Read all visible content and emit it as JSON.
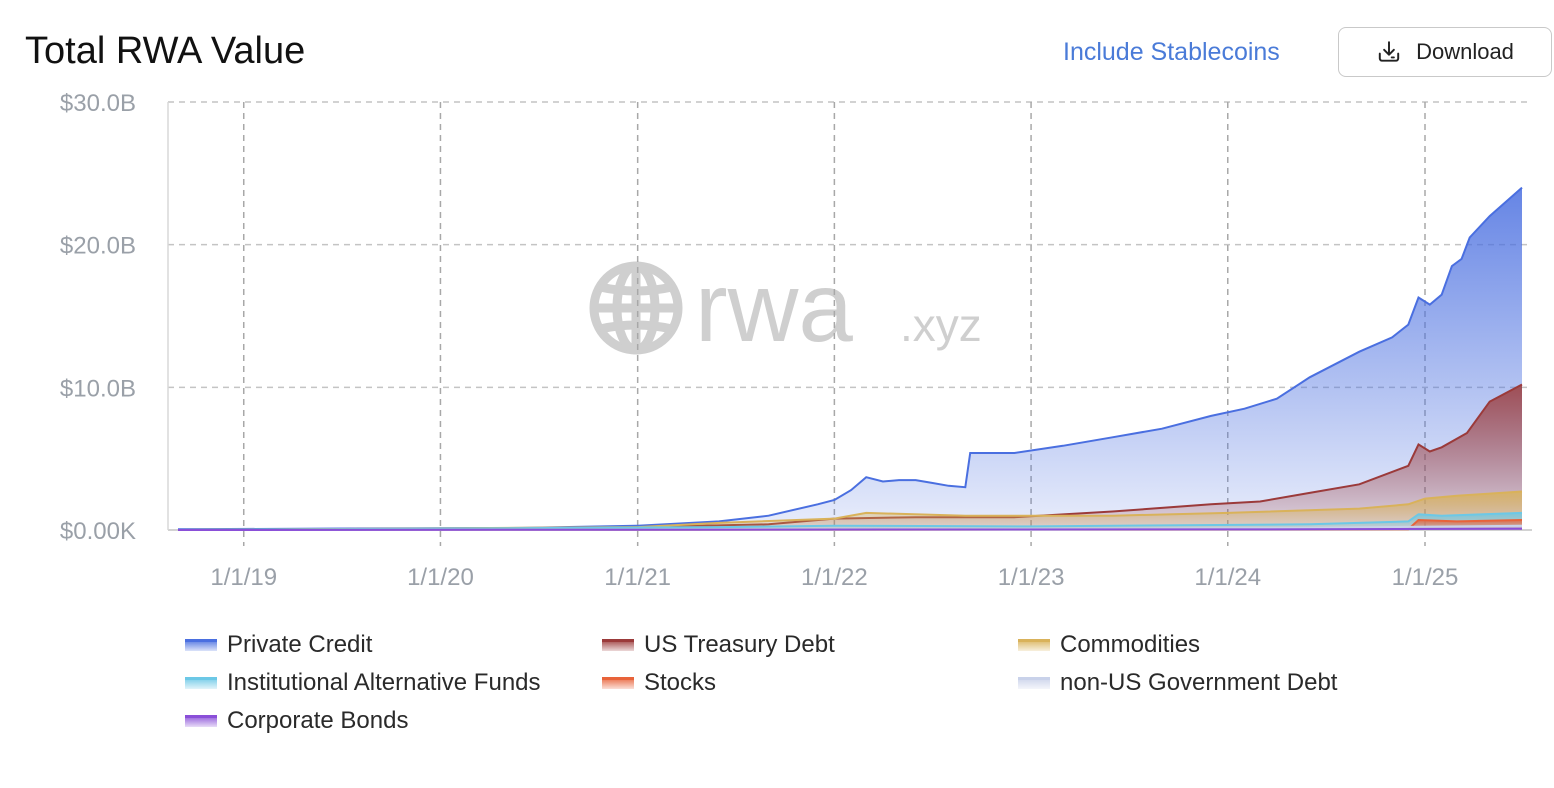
{
  "header": {
    "title": "Total RWA Value",
    "include_stablecoins_label": "Include Stablecoins",
    "download_label": "Download",
    "download_icon": "download-icon"
  },
  "watermark": {
    "brand": "rwa",
    "suffix": ".xyz",
    "icon": "globe-icon"
  },
  "colors": {
    "Private Credit": "#4a6fe0",
    "US Treasury Debt": "#9b3a3a",
    "Commodities": "#d9b25a",
    "Institutional Alternative Funds": "#6cc8e6",
    "Stocks": "#e8633a",
    "non-US Government Debt": "#c9d2ea",
    "Corporate Bonds": "#8a4fd8"
  },
  "chart_data": {
    "type": "area",
    "title": "Total RWA Value",
    "stacked": false,
    "ylim": [
      0,
      30
    ],
    "y_unit": "B USD",
    "y_ticks": [
      "$0.00K",
      "$10.0B",
      "$20.0B",
      "$30.0B"
    ],
    "x_ticks": [
      "1/1/19",
      "1/1/20",
      "1/1/21",
      "1/1/22",
      "1/1/23",
      "1/1/24",
      "1/1/25"
    ],
    "xlim": [
      "2018-09-01",
      "2025-06-30"
    ],
    "grid": true,
    "legend_position": "bottom",
    "series": [
      {
        "name": "Private Credit",
        "points": [
          [
            "2018-09-01",
            0.05
          ],
          [
            "2019-06-01",
            0.1
          ],
          [
            "2020-06-01",
            0.15
          ],
          [
            "2021-01-01",
            0.3
          ],
          [
            "2021-06-01",
            0.6
          ],
          [
            "2021-09-01",
            1.0
          ],
          [
            "2021-12-01",
            1.8
          ],
          [
            "2022-01-01",
            2.1
          ],
          [
            "2022-02-01",
            2.8
          ],
          [
            "2022-03-01",
            3.7
          ],
          [
            "2022-04-01",
            3.4
          ],
          [
            "2022-05-01",
            3.5
          ],
          [
            "2022-06-01",
            3.5
          ],
          [
            "2022-07-01",
            3.3
          ],
          [
            "2022-08-01",
            3.1
          ],
          [
            "2022-09-01",
            3.0
          ],
          [
            "2022-09-10",
            5.4
          ],
          [
            "2022-12-01",
            5.4
          ],
          [
            "2023-03-01",
            5.9
          ],
          [
            "2023-06-01",
            6.5
          ],
          [
            "2023-09-01",
            7.1
          ],
          [
            "2023-12-01",
            8.0
          ],
          [
            "2024-02-01",
            8.5
          ],
          [
            "2024-04-01",
            9.2
          ],
          [
            "2024-06-01",
            10.7
          ],
          [
            "2024-09-01",
            12.5
          ],
          [
            "2024-11-01",
            13.5
          ],
          [
            "2024-12-01",
            14.4
          ],
          [
            "2024-12-20",
            16.3
          ],
          [
            "2025-01-10",
            15.8
          ],
          [
            "2025-02-01",
            16.5
          ],
          [
            "2025-02-20",
            18.5
          ],
          [
            "2025-03-10",
            19.0
          ],
          [
            "2025-03-25",
            20.5
          ],
          [
            "2025-05-01",
            22.0
          ],
          [
            "2025-06-30",
            24.0
          ]
        ]
      },
      {
        "name": "US Treasury Debt",
        "points": [
          [
            "2018-09-01",
            0.0
          ],
          [
            "2020-06-01",
            0.05
          ],
          [
            "2021-01-01",
            0.2
          ],
          [
            "2021-09-01",
            0.4
          ],
          [
            "2022-01-01",
            0.8
          ],
          [
            "2022-06-01",
            0.9
          ],
          [
            "2022-12-01",
            0.9
          ],
          [
            "2023-06-01",
            1.3
          ],
          [
            "2023-12-01",
            1.8
          ],
          [
            "2024-03-01",
            2.0
          ],
          [
            "2024-06-01",
            2.6
          ],
          [
            "2024-09-01",
            3.2
          ],
          [
            "2024-12-01",
            4.5
          ],
          [
            "2024-12-20",
            6.0
          ],
          [
            "2025-01-10",
            5.5
          ],
          [
            "2025-02-01",
            5.8
          ],
          [
            "2025-03-20",
            6.8
          ],
          [
            "2025-05-01",
            9.0
          ],
          [
            "2025-06-30",
            10.2
          ]
        ]
      },
      {
        "name": "Commodities",
        "points": [
          [
            "2018-09-01",
            0.0
          ],
          [
            "2021-01-01",
            0.2
          ],
          [
            "2021-06-01",
            0.5
          ],
          [
            "2022-01-01",
            0.8
          ],
          [
            "2022-03-01",
            1.2
          ],
          [
            "2022-09-01",
            1.0
          ],
          [
            "2023-06-01",
            1.0
          ],
          [
            "2024-01-01",
            1.2
          ],
          [
            "2024-09-01",
            1.5
          ],
          [
            "2024-12-01",
            1.8
          ],
          [
            "2025-01-01",
            2.2
          ],
          [
            "2025-03-01",
            2.4
          ],
          [
            "2025-06-30",
            2.7
          ]
        ]
      },
      {
        "name": "Institutional Alternative Funds",
        "points": [
          [
            "2018-09-01",
            0.0
          ],
          [
            "2021-06-01",
            0.2
          ],
          [
            "2022-01-01",
            0.3
          ],
          [
            "2023-01-01",
            0.25
          ],
          [
            "2024-06-01",
            0.4
          ],
          [
            "2024-12-01",
            0.6
          ],
          [
            "2024-12-20",
            1.1
          ],
          [
            "2025-02-01",
            1.0
          ],
          [
            "2025-06-30",
            1.2
          ]
        ]
      },
      {
        "name": "Stocks",
        "points": [
          [
            "2018-09-01",
            0.0
          ],
          [
            "2024-12-01",
            0.05
          ],
          [
            "2024-12-20",
            0.7
          ],
          [
            "2025-03-01",
            0.6
          ],
          [
            "2025-06-30",
            0.7
          ]
        ]
      },
      {
        "name": "non-US Government Debt",
        "points": [
          [
            "2018-09-01",
            0.0
          ],
          [
            "2023-01-01",
            0.05
          ],
          [
            "2024-06-01",
            0.15
          ],
          [
            "2025-06-30",
            0.3
          ]
        ]
      },
      {
        "name": "Corporate Bonds",
        "points": [
          [
            "2018-09-01",
            0.0
          ],
          [
            "2024-06-01",
            0.05
          ],
          [
            "2025-06-30",
            0.1
          ]
        ]
      }
    ]
  }
}
